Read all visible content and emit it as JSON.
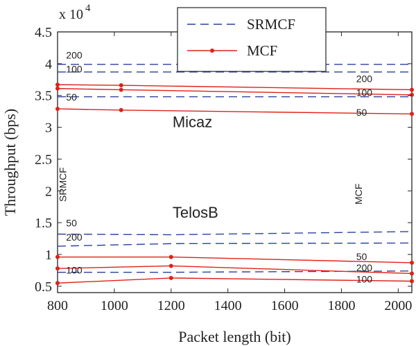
{
  "chart_data": {
    "type": "line",
    "xlabel": "Packet length (bit)",
    "ylabel": "Throughput (bps)",
    "y_multiplier": "x 10",
    "y_exponent": "4",
    "xlim": [
      800,
      2048
    ],
    "ylim": [
      0.4,
      4.5
    ],
    "xticks": [
      800,
      1000,
      1200,
      1400,
      1600,
      1800,
      2000
    ],
    "yticks": [
      0.5,
      1,
      1.5,
      2,
      2.5,
      3,
      3.5,
      4,
      4.5
    ],
    "ytick_labels": [
      "0.5",
      "1",
      "1.5",
      "2",
      "2.5",
      "3",
      "3.5",
      "4",
      "4.5"
    ],
    "grid": false,
    "legend_position": "top-center",
    "legend": [
      {
        "label": "SRMCF",
        "style": "dashed",
        "color": "#2a3f9e"
      },
      {
        "label": "MCF",
        "style": "solid-dot",
        "color": "#e0201b"
      }
    ],
    "colors": {
      "srmcf": "#2a3f9e",
      "mcf": "#e0201b"
    },
    "series": [
      {
        "group": "SRMCF",
        "x": [
          800,
          1024,
          1200,
          2048
        ],
        "y": [
          3.99,
          3.99,
          3.99,
          3.99
        ],
        "label": "200"
      },
      {
        "group": "SRMCF",
        "x": [
          800,
          1024,
          1200,
          2048
        ],
        "y": [
          3.87,
          3.87,
          3.87,
          3.87
        ],
        "label": "100"
      },
      {
        "group": "SRMCF",
        "x": [
          800,
          1024,
          1200,
          2048
        ],
        "y": [
          3.48,
          3.48,
          3.48,
          3.48
        ],
        "label": "50"
      },
      {
        "group": "MCF",
        "x": [
          800,
          1024,
          2048
        ],
        "y": [
          3.67,
          3.66,
          3.59
        ],
        "label": "200"
      },
      {
        "group": "MCF",
        "x": [
          800,
          1024,
          2048
        ],
        "y": [
          3.61,
          3.59,
          3.51
        ],
        "label": "100"
      },
      {
        "group": "MCF",
        "x": [
          800,
          1024,
          2048
        ],
        "y": [
          3.29,
          3.27,
          3.21
        ],
        "label": "50"
      },
      {
        "group": "SRMCF",
        "x": [
          800,
          1200,
          2048
        ],
        "y": [
          1.32,
          1.31,
          1.36
        ],
        "label": "50"
      },
      {
        "group": "SRMCF",
        "x": [
          800,
          1200,
          2048
        ],
        "y": [
          1.13,
          1.17,
          1.18
        ],
        "label": "200"
      },
      {
        "group": "SRMCF",
        "x": [
          800,
          1200,
          2048
        ],
        "y": [
          0.72,
          0.72,
          0.74
        ],
        "label": "100"
      },
      {
        "group": "MCF",
        "x": [
          800,
          1200,
          2048
        ],
        "y": [
          0.96,
          0.96,
          0.87
        ],
        "label": "50"
      },
      {
        "group": "MCF",
        "x": [
          800,
          1200,
          2048
        ],
        "y": [
          0.78,
          0.82,
          0.7
        ],
        "label": "200"
      },
      {
        "group": "MCF",
        "x": [
          800,
          1200,
          2048
        ],
        "y": [
          0.55,
          0.63,
          0.58
        ],
        "label": "100"
      }
    ],
    "annotations": [
      {
        "text": "200",
        "x": 830,
        "y": 4.08,
        "size": "small"
      },
      {
        "text": "100",
        "x": 830,
        "y": 3.86,
        "size": "small"
      },
      {
        "text": "50",
        "x": 830,
        "y": 3.42,
        "size": "small"
      },
      {
        "text": "200",
        "x": 1852,
        "y": 3.71,
        "size": "small"
      },
      {
        "text": "100",
        "x": 1852,
        "y": 3.49,
        "size": "small"
      },
      {
        "text": "50",
        "x": 1852,
        "y": 3.18,
        "size": "small"
      },
      {
        "text": "Micaz",
        "x": 1205,
        "y": 3.0,
        "size": "big"
      },
      {
        "text": "TelosB",
        "x": 1205,
        "y": 1.58,
        "size": "big"
      },
      {
        "text": "50",
        "x": 830,
        "y": 1.44,
        "size": "small"
      },
      {
        "text": "200",
        "x": 830,
        "y": 1.22,
        "size": "small"
      },
      {
        "text": "100",
        "x": 830,
        "y": 0.7,
        "size": "small"
      },
      {
        "text": "50",
        "x": 1852,
        "y": 0.91,
        "size": "small"
      },
      {
        "text": "200",
        "x": 1852,
        "y": 0.74,
        "size": "small"
      },
      {
        "text": "100",
        "x": 1852,
        "y": 0.56,
        "size": "small"
      },
      {
        "text": "SRMCF",
        "x": 830,
        "y": 2.1,
        "size": "rotated"
      },
      {
        "text": "MCF",
        "x": 1872,
        "y": 1.95,
        "size": "rotated"
      }
    ]
  }
}
